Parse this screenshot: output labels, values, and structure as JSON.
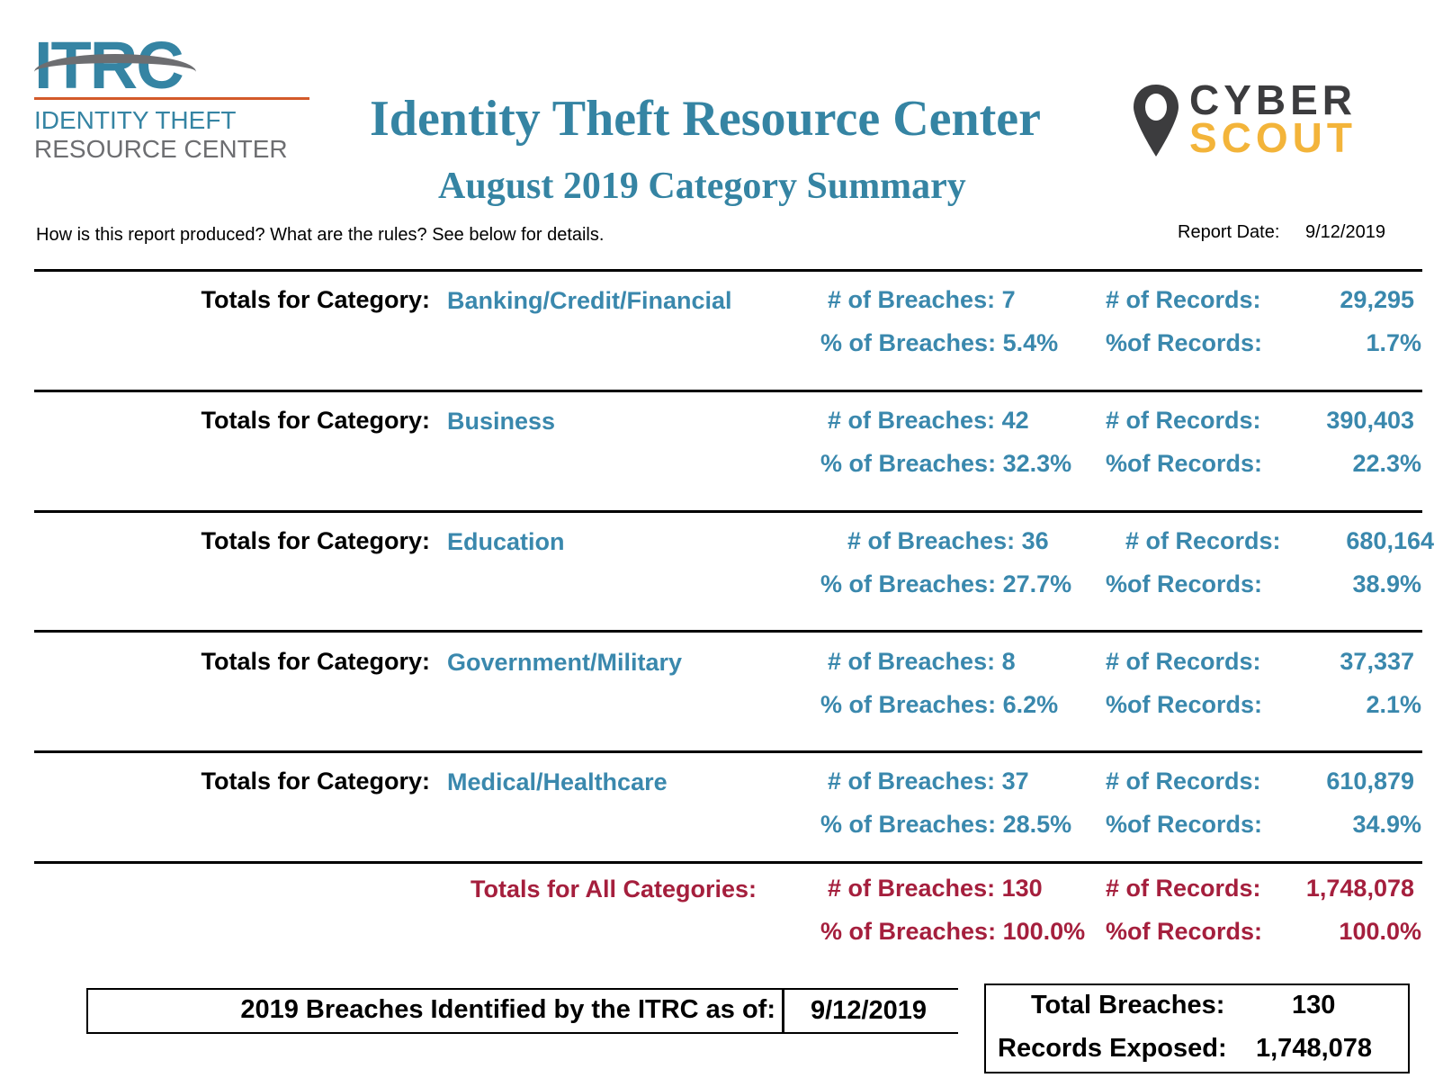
{
  "logo_left": {
    "mark": "ITRC",
    "line1": "IDENTITY THEFT",
    "line2": "RESOURCE CENTER",
    "blue": "#3584a3",
    "gray": "#6d6e71",
    "orange": "#d35a2a"
  },
  "logo_right": {
    "line1": "CYBER",
    "line2": "SCOUT",
    "dark": "#3c3c3e",
    "yellow": "#f3b43a",
    "icon": "map-pin-icon"
  },
  "header": {
    "title": "Identity Theft Resource Center",
    "subtitle": "August 2019 Category Summary",
    "note": "How is this report produced?  What are the rules?  See below for details.",
    "report_date_label": "Report Date:",
    "report_date": "9/12/2019"
  },
  "labels": {
    "totals_for_category": "Totals for Category:",
    "num_breaches": "# of Breaches:",
    "pct_breaches": "% of Breaches:",
    "num_records": "# of Records:",
    "pct_records": "%of Records:"
  },
  "categories": [
    {
      "name": "Banking/Credit/Financial",
      "breaches": "7",
      "breaches_pct": "5.4%",
      "records": "29,295",
      "records_pct": "1.7%"
    },
    {
      "name": "Business",
      "breaches": "42",
      "breaches_pct": "32.3%",
      "records": "390,403",
      "records_pct": "22.3%"
    },
    {
      "name": "Education",
      "breaches": "36",
      "breaches_pct": "27.7%",
      "records": "680,164",
      "records_pct": "38.9%"
    },
    {
      "name": "Government/Military",
      "breaches": "8",
      "breaches_pct": "6.2%",
      "records": "37,337",
      "records_pct": "2.1%"
    },
    {
      "name": "Medical/Healthcare",
      "breaches": "37",
      "breaches_pct": "28.5%",
      "records": "610,879",
      "records_pct": "34.9%"
    }
  ],
  "totals": {
    "label": "Totals for All Categories:",
    "breaches": "130",
    "breaches_pct": "100.0%",
    "records": "1,748,078",
    "records_pct": "100.0%"
  },
  "footer": {
    "identified_label": "2019 Breaches Identified by the ITRC as of:",
    "identified_date": "9/12/2019",
    "total_breaches_label": "Total Breaches:",
    "total_breaches": "130",
    "records_exposed_label": "Records Exposed:",
    "records_exposed": "1,748,078"
  },
  "colors": {
    "accent_blue": "#3a88ad",
    "totals_red": "#a51f3d"
  }
}
